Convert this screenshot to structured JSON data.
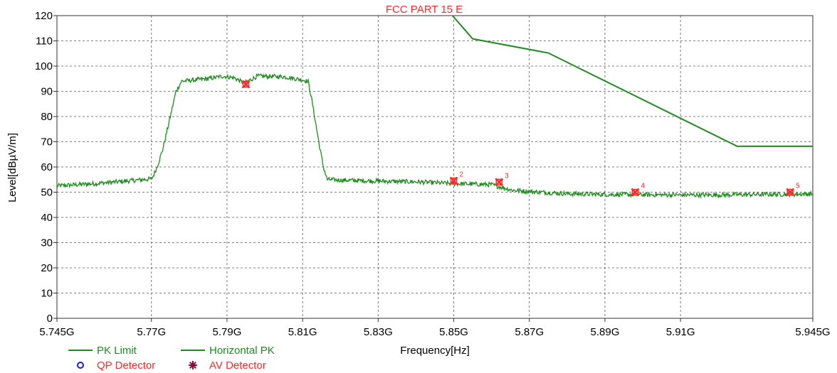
{
  "chart_data": {
    "type": "line",
    "title": "FCC PART 15 E",
    "xlabel": "Frequency[Hz]",
    "ylabel": "Level[dBµV/m]",
    "xlim": [
      5.745,
      5.945
    ],
    "ylim": [
      0,
      120
    ],
    "grid": true,
    "x_ticks": [
      5.745,
      5.77,
      5.79,
      5.81,
      5.83,
      5.85,
      5.87,
      5.89,
      5.91,
      5.945
    ],
    "x_tick_labels": [
      "5.745G",
      "5.77G",
      "5.79G",
      "5.81G",
      "5.83G",
      "5.85G",
      "5.87G",
      "5.89G",
      "5.91G",
      "5.945G"
    ],
    "y_ticks": [
      0,
      10,
      20,
      30,
      40,
      50,
      60,
      70,
      80,
      90,
      100,
      110,
      120
    ],
    "y_tick_labels": [
      "0",
      "10",
      "20",
      "30",
      "40",
      "50",
      "60",
      "70",
      "80",
      "90",
      "100",
      "110",
      "120"
    ],
    "series": [
      {
        "name": "PK Limit",
        "color": "#1e8c1e",
        "x": [
          5.8485,
          5.855,
          5.875,
          5.925,
          5.945
        ],
        "y": [
          122,
          110.8,
          105.2,
          68.2,
          68.2
        ]
      },
      {
        "name": "Horizontal PK",
        "color": "#1e8c1e",
        "x": [
          5.745,
          5.755,
          5.765,
          5.77,
          5.7705,
          5.7715,
          5.773,
          5.775,
          5.7765,
          5.778,
          5.785,
          5.789,
          5.792,
          5.7945,
          5.7965,
          5.798,
          5.805,
          5.8105,
          5.8115,
          5.8125,
          5.8145,
          5.8155,
          5.8165,
          5.82,
          5.83,
          5.84,
          5.85,
          5.86,
          5.8655,
          5.87,
          5.88,
          5.89,
          5.9,
          5.91,
          5.92,
          5.93,
          5.945
        ],
        "y": [
          52.5,
          53.4,
          54.6,
          55.3,
          56.5,
          60,
          67,
          80,
          90,
          94,
          95,
          96,
          95.3,
          93.2,
          94.8,
          96,
          95.8,
          94.4,
          93.8,
          86,
          68,
          60,
          55,
          54.8,
          54.4,
          54.1,
          53.4,
          53,
          50.8,
          50.3,
          49.4,
          49.1,
          49,
          48.9,
          48.9,
          49.1,
          49.3
        ]
      }
    ],
    "markers": [
      {
        "label": "",
        "x": 5.795,
        "y": 92.8
      },
      {
        "label": "2",
        "x": 5.85,
        "y": 54.5
      },
      {
        "label": "3",
        "x": 5.862,
        "y": 54
      },
      {
        "label": "4",
        "x": 5.898,
        "y": 50
      },
      {
        "label": "5",
        "x": 5.939,
        "y": 50
      }
    ],
    "legend": {
      "position": "bottom-left",
      "entries": [
        {
          "name": "PK Limit",
          "symbol": "line",
          "color": "#1e8c1e",
          "text_color": "#1e8c1e"
        },
        {
          "name": "Horizontal PK",
          "symbol": "line",
          "color": "#1e8c1e",
          "text_color": "#1e8c1e"
        },
        {
          "name": "QP Detector",
          "symbol": "circle",
          "color": "#1a1ad9",
          "text_color": "#ff2a2a"
        },
        {
          "name": "AV Detector",
          "symbol": "star",
          "color": "#8b0a3c",
          "text_color": "#ff2a2a"
        }
      ]
    },
    "marker_color": "#ff2a2a",
    "grid_color": "#555555"
  }
}
